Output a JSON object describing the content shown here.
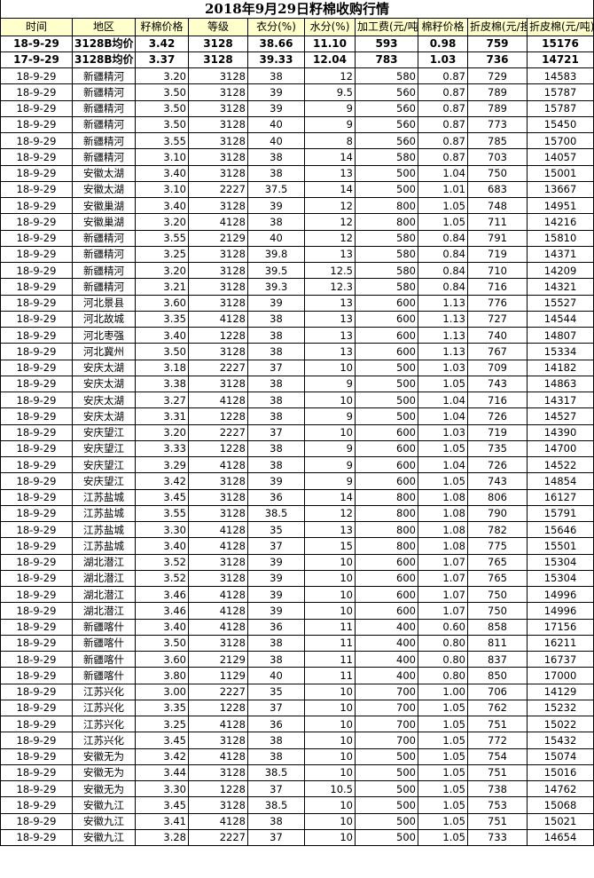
{
  "title": "2018年9月29日籽棉收购行情",
  "headers": [
    "时间",
    "地区",
    "籽棉价格",
    "等级",
    "衣分(%)",
    "水分(%)",
    "加工费(元/吨)",
    "棉籽价格",
    "折皮棉(元/担)",
    "折皮棉(元/吨)"
  ],
  "summary_rows": [
    [
      "18-9-29",
      "3128B均价",
      "3.42",
      "3128",
      "38.66",
      "11.10",
      "593",
      "0.98",
      "759",
      "15176"
    ],
    [
      "17-9-29",
      "3128B均价",
      "3.37",
      "3128",
      "39.33",
      "12.04",
      "783",
      "1.03",
      "736",
      "14721"
    ]
  ],
  "rows": [
    [
      "18-9-29",
      "新疆精河",
      "3.20",
      "3128",
      "38",
      "12",
      "580",
      "0.87",
      "729",
      "14583"
    ],
    [
      "18-9-29",
      "新疆精河",
      "3.50",
      "3128",
      "39",
      "9.5",
      "560",
      "0.87",
      "789",
      "15787"
    ],
    [
      "18-9-29",
      "新疆精河",
      "3.50",
      "3128",
      "39",
      "9",
      "560",
      "0.87",
      "789",
      "15787"
    ],
    [
      "18-9-29",
      "新疆精河",
      "3.50",
      "3128",
      "40",
      "9",
      "560",
      "0.87",
      "773",
      "15450"
    ],
    [
      "18-9-29",
      "新疆精河",
      "3.55",
      "3128",
      "40",
      "8",
      "560",
      "0.87",
      "785",
      "15700"
    ],
    [
      "18-9-29",
      "新疆精河",
      "3.10",
      "3128",
      "38",
      "14",
      "580",
      "0.87",
      "703",
      "14057"
    ],
    [
      "18-9-29",
      "安徽太湖",
      "3.40",
      "3128",
      "38",
      "13",
      "500",
      "1.04",
      "750",
      "15001"
    ],
    [
      "18-9-29",
      "安徽太湖",
      "3.10",
      "2227",
      "37.5",
      "14",
      "500",
      "1.01",
      "683",
      "13667"
    ],
    [
      "18-9-29",
      "安徽巢湖",
      "3.40",
      "3128",
      "39",
      "12",
      "800",
      "1.05",
      "748",
      "14951"
    ],
    [
      "18-9-29",
      "安徽巢湖",
      "3.20",
      "4128",
      "38",
      "12",
      "800",
      "1.05",
      "711",
      "14216"
    ],
    [
      "18-9-29",
      "新疆精河",
      "3.55",
      "2129",
      "40",
      "12",
      "580",
      "0.84",
      "791",
      "15810"
    ],
    [
      "18-9-29",
      "新疆精河",
      "3.25",
      "3128",
      "39.8",
      "13",
      "580",
      "0.84",
      "719",
      "14371"
    ],
    [
      "18-9-29",
      "新疆精河",
      "3.20",
      "3128",
      "39.5",
      "12.5",
      "580",
      "0.84",
      "710",
      "14209"
    ],
    [
      "18-9-29",
      "新疆精河",
      "3.21",
      "3128",
      "39.3",
      "12.3",
      "580",
      "0.84",
      "716",
      "14321"
    ],
    [
      "18-9-29",
      "河北景县",
      "3.60",
      "3128",
      "39",
      "13",
      "600",
      "1.13",
      "776",
      "15527"
    ],
    [
      "18-9-29",
      "河北故城",
      "3.35",
      "4128",
      "38",
      "13",
      "600",
      "1.13",
      "727",
      "14544"
    ],
    [
      "18-9-29",
      "河北枣强",
      "3.40",
      "1228",
      "38",
      "13",
      "600",
      "1.13",
      "740",
      "14807"
    ],
    [
      "18-9-29",
      "河北冀州",
      "3.50",
      "3128",
      "38",
      "13",
      "600",
      "1.13",
      "767",
      "15334"
    ],
    [
      "18-9-29",
      "安庆太湖",
      "3.18",
      "2227",
      "37",
      "10",
      "500",
      "1.03",
      "709",
      "14182"
    ],
    [
      "18-9-29",
      "安庆太湖",
      "3.38",
      "3128",
      "38",
      "9",
      "500",
      "1.05",
      "743",
      "14863"
    ],
    [
      "18-9-29",
      "安庆太湖",
      "3.27",
      "4128",
      "38",
      "10",
      "500",
      "1.04",
      "716",
      "14317"
    ],
    [
      "18-9-29",
      "安庆太湖",
      "3.31",
      "1228",
      "38",
      "9",
      "500",
      "1.04",
      "726",
      "14527"
    ],
    [
      "18-9-29",
      "安庆望江",
      "3.20",
      "2227",
      "37",
      "10",
      "600",
      "1.03",
      "719",
      "14390"
    ],
    [
      "18-9-29",
      "安庆望江",
      "3.33",
      "1228",
      "38",
      "9",
      "600",
      "1.05",
      "735",
      "14700"
    ],
    [
      "18-9-29",
      "安庆望江",
      "3.29",
      "4128",
      "38",
      "9",
      "600",
      "1.04",
      "726",
      "14522"
    ],
    [
      "18-9-29",
      "安庆望江",
      "3.42",
      "3128",
      "39",
      "9",
      "600",
      "1.05",
      "743",
      "14854"
    ],
    [
      "18-9-29",
      "江苏盐城",
      "3.45",
      "3128",
      "36",
      "14",
      "800",
      "1.08",
      "806",
      "16127"
    ],
    [
      "18-9-29",
      "江苏盐城",
      "3.55",
      "3128",
      "38.5",
      "12",
      "800",
      "1.08",
      "790",
      "15791"
    ],
    [
      "18-9-29",
      "江苏盐城",
      "3.30",
      "4128",
      "35",
      "13",
      "800",
      "1.08",
      "782",
      "15646"
    ],
    [
      "18-9-29",
      "江苏盐城",
      "3.40",
      "4128",
      "37",
      "15",
      "800",
      "1.08",
      "775",
      "15501"
    ],
    [
      "18-9-29",
      "湖北潜江",
      "3.52",
      "3128",
      "39",
      "10",
      "600",
      "1.07",
      "765",
      "15304"
    ],
    [
      "18-9-29",
      "湖北潜江",
      "3.52",
      "3128",
      "39",
      "10",
      "600",
      "1.07",
      "765",
      "15304"
    ],
    [
      "18-9-29",
      "湖北潜江",
      "3.46",
      "4128",
      "39",
      "10",
      "600",
      "1.07",
      "750",
      "14996"
    ],
    [
      "18-9-29",
      "湖北潜江",
      "3.46",
      "4128",
      "39",
      "10",
      "600",
      "1.07",
      "750",
      "14996"
    ],
    [
      "18-9-29",
      "新疆喀什",
      "3.40",
      "4128",
      "36",
      "11",
      "400",
      "0.60",
      "858",
      "17156"
    ],
    [
      "18-9-29",
      "新疆喀什",
      "3.50",
      "3128",
      "38",
      "11",
      "400",
      "0.80",
      "811",
      "16211"
    ],
    [
      "18-9-29",
      "新疆喀什",
      "3.60",
      "2129",
      "38",
      "11",
      "400",
      "0.80",
      "837",
      "16737"
    ],
    [
      "18-9-29",
      "新疆喀什",
      "3.80",
      "1129",
      "40",
      "11",
      "400",
      "0.80",
      "850",
      "17000"
    ],
    [
      "18-9-29",
      "江苏兴化",
      "3.00",
      "2227",
      "35",
      "10",
      "700",
      "1.00",
      "706",
      "14129"
    ],
    [
      "18-9-29",
      "江苏兴化",
      "3.35",
      "1228",
      "37",
      "10",
      "700",
      "1.05",
      "762",
      "15232"
    ],
    [
      "18-9-29",
      "江苏兴化",
      "3.25",
      "4128",
      "36",
      "10",
      "700",
      "1.05",
      "751",
      "15022"
    ],
    [
      "18-9-29",
      "江苏兴化",
      "3.45",
      "3128",
      "38",
      "10",
      "700",
      "1.05",
      "772",
      "15432"
    ],
    [
      "18-9-29",
      "安徽无为",
      "3.42",
      "4128",
      "38",
      "10",
      "500",
      "1.05",
      "754",
      "15074"
    ],
    [
      "18-9-29",
      "安徽无为",
      "3.44",
      "3128",
      "38.5",
      "10",
      "500",
      "1.05",
      "751",
      "15016"
    ],
    [
      "18-9-29",
      "安徽无为",
      "3.30",
      "1228",
      "37",
      "10.5",
      "500",
      "1.05",
      "738",
      "14762"
    ],
    [
      "18-9-29",
      "安徽九江",
      "3.45",
      "3128",
      "38.5",
      "10",
      "500",
      "1.05",
      "753",
      "15068"
    ],
    [
      "18-9-29",
      "安徽九江",
      "3.41",
      "4128",
      "38",
      "10",
      "500",
      "1.05",
      "751",
      "15021"
    ],
    [
      "18-9-29",
      "安徽九江",
      "3.28",
      "2227",
      "37",
      "10",
      "500",
      "1.05",
      "733",
      "14654"
    ]
  ],
  "colors": {
    "header_bg": "#ffffcc",
    "grid": "#000000"
  }
}
